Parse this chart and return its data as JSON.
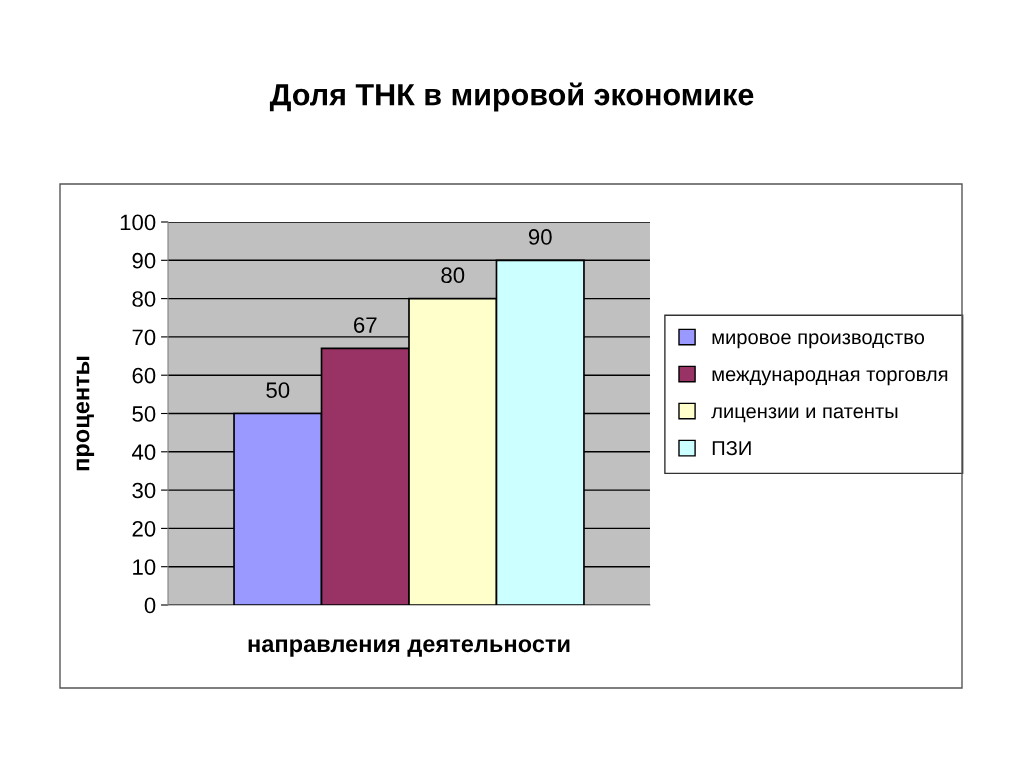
{
  "chart_data": {
    "type": "bar",
    "title": "Доля ТНК в мировой экономике",
    "xlabel": "направления деятельности",
    "ylabel": "проценты",
    "categories": [
      null
    ],
    "series": [
      {
        "name": "мировое производство",
        "color": "#9999ff",
        "values": [
          50
        ]
      },
      {
        "name": "международная торговля",
        "color": "#993366",
        "values": [
          67
        ]
      },
      {
        "name": "лицензии и патенты",
        "color": "#ffffcc",
        "values": [
          80
        ]
      },
      {
        "name": "ПЗИ",
        "color": "#ccffff",
        "values": [
          90
        ]
      }
    ],
    "ylim": [
      0,
      100
    ],
    "yticks": [
      0,
      10,
      20,
      30,
      40,
      50,
      60,
      70,
      80,
      90,
      100
    ],
    "grid": "y",
    "legend": "right",
    "data_labels": true
  }
}
